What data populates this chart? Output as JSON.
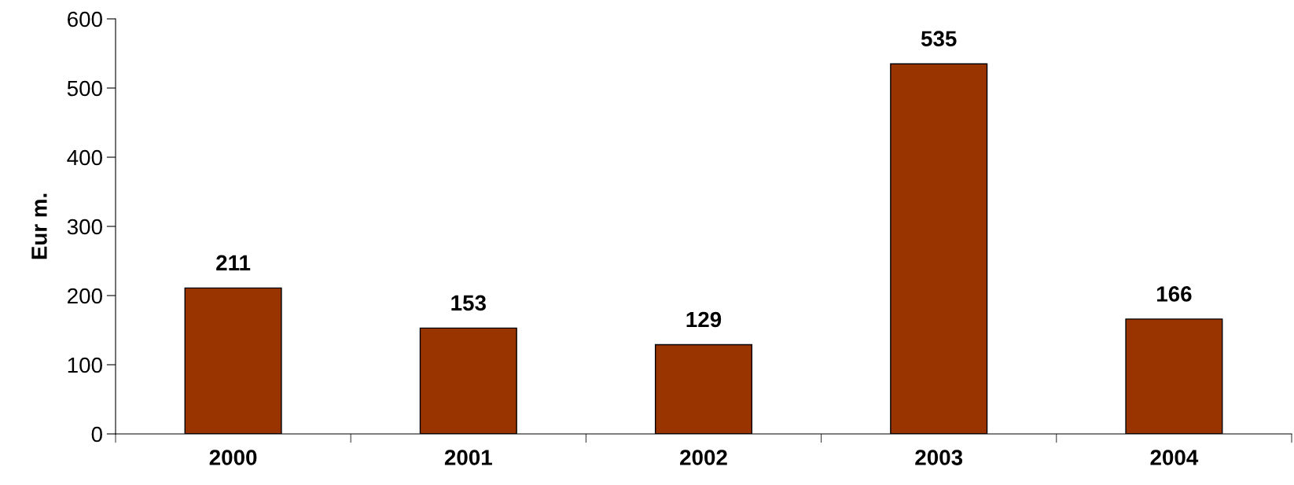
{
  "chart_data": {
    "type": "bar",
    "ylabel": "Eur m.",
    "categories": [
      "2000",
      "2001",
      "2002",
      "2003",
      "2004"
    ],
    "values": [
      211,
      153,
      129,
      535,
      166
    ],
    "color": "#993300",
    "ylim": [
      0,
      600
    ],
    "yticks": [
      0,
      100,
      200,
      300,
      400,
      500,
      600
    ],
    "data_labels": true,
    "grid": false,
    "legend": false
  }
}
